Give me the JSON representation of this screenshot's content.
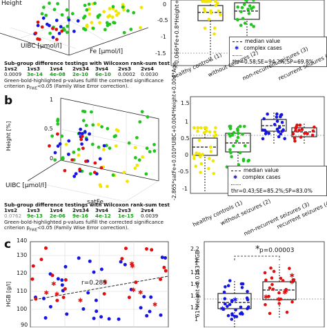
{
  "panels": {
    "b": "b",
    "c": "c"
  },
  "a": {
    "axis": {
      "y": "Height",
      "x1": "UIBC [μmol/l]",
      "x2": "Fe [μmol/l]"
    },
    "table": {
      "title": "Sub-group difference testings with Wilcoxon rank-sum test",
      "headers": [
        "1vs2",
        "1vs3",
        "1vs4",
        "2vs34",
        "3vs4",
        "2vs3",
        "2vs4"
      ],
      "values": [
        "0.0009",
        "3e-14",
        "4e-08",
        "2e-10",
        "6e-10",
        "0.0002",
        "0.0030"
      ],
      "note1": "Green-bold-highlighted p-values fulfill the corrected significance",
      "note2": "criterion p",
      "note_sub": "FWE",
      "note3": "<0.05 (Family Wise Error correction)."
    },
    "box": {
      "ylabel": "-0.066*Fe+0.8*Height+0.005*Height",
      "yticks": [
        "0",
        "-0.5",
        "-1",
        "-1.5"
      ],
      "legend": [
        "median value",
        "complex cases",
        "thr=0.58;SE=94.2%;SP=69.8%"
      ]
    }
  },
  "b": {
    "axis": {
      "y": "Height [%]",
      "x1": "UIBC [μmol/l]",
      "x2": "satFe"
    },
    "ticks_y3d": [
      "1",
      "0.5",
      "0"
    ],
    "table": {
      "title": "Sub-group difference testings with Wilcoxon rank-sum test",
      "headers": [
        "1vs2",
        "1vs3",
        "1vs4",
        "2vs34",
        "3vs4",
        "2vs3",
        "2vs4"
      ],
      "values": [
        "0.0762",
        "9e-13",
        "2e-06",
        "9e-16",
        "4e-12",
        "1e-15",
        "0.0039"
      ],
      "note1": "Green-bold-highlighted p-values fulfill the corrected significance",
      "note2": "criterion p",
      "note_sub": "FWE",
      "note3": "<0.05 (Family Wise Error correction)."
    },
    "box": {
      "ylabel": "-2.865*satFe+0.010*UIBC+0.004*Height+0.004*Age",
      "yticks": [
        "1.5",
        "1",
        "0.5",
        "0",
        "-0.5",
        "-1"
      ],
      "categories": [
        "healthy controls (1)",
        "without seizures (2)",
        "non-recurrent seizures (3)",
        "recurrent seizures (4)"
      ],
      "legend": [
        "median value",
        "complex cases",
        "thr=0.43;SE=85.2%;SP=83.0%"
      ]
    }
  },
  "a_categories": [
    "healthy controls (1)",
    "without seizures (2)",
    "non-recurrent seizures (3)",
    "recurrent seizures (4)"
  ],
  "c": {
    "scatter": {
      "ylabel": "HGB [g/l]",
      "yticks": [
        "140",
        "130",
        "120",
        "110",
        "100",
        "90"
      ],
      "r_label": "r=0.285"
    },
    "box": {
      "ylabel": "61*Height+0.0153*HGB",
      "yticks": [
        "2.2",
        "2",
        "1.8",
        "1.6",
        "1.4",
        "1.2",
        "1",
        "0.8"
      ],
      "pval": "p=0.00003",
      "star": "*"
    }
  },
  "colors": {
    "yellow": "#f2e600",
    "green": "#22c41f",
    "blue": "#1616e0",
    "red": "#e01010"
  }
}
